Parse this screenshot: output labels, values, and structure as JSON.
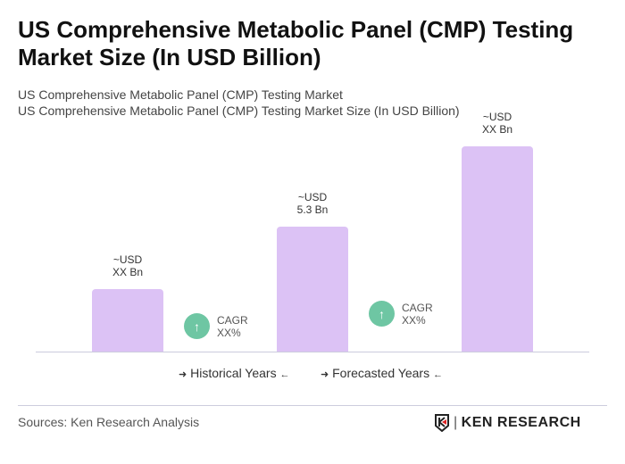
{
  "title": "US Comprehensive Metabolic Panel (CMP) Testing Market Size (In USD Billion)",
  "subtitle1": "US Comprehensive Metabolic Panel (CMP) Testing Market",
  "subtitle2": "US Comprehensive Metabolic Panel (CMP) Testing Market Size (In USD Billion)",
  "chart_data": {
    "type": "bar",
    "title": "US Comprehensive Metabolic Panel (CMP) Testing Market Size (In USD Billion)",
    "categories": [
      "",
      "",
      ""
    ],
    "values": [
      2.65,
      5.3,
      8.7
    ],
    "data_labels": [
      [
        "~USD",
        "XX Bn"
      ],
      [
        "~USD",
        "5.3 Bn"
      ],
      [
        "~USD",
        "XX Bn"
      ]
    ],
    "bar_color": "#dcc2f5",
    "grid": false,
    "cagr": [
      {
        "label": "CAGR",
        "value": "XX%"
      },
      {
        "label": "CAGR",
        "value": "XX%"
      }
    ],
    "cagr_color": "#6ec6a3",
    "legend": [
      "Historical Years",
      "Forecasted Years"
    ]
  },
  "footer": {
    "source": "Sources: Ken Research Analysis",
    "logo": "KEN RESEARCH"
  }
}
